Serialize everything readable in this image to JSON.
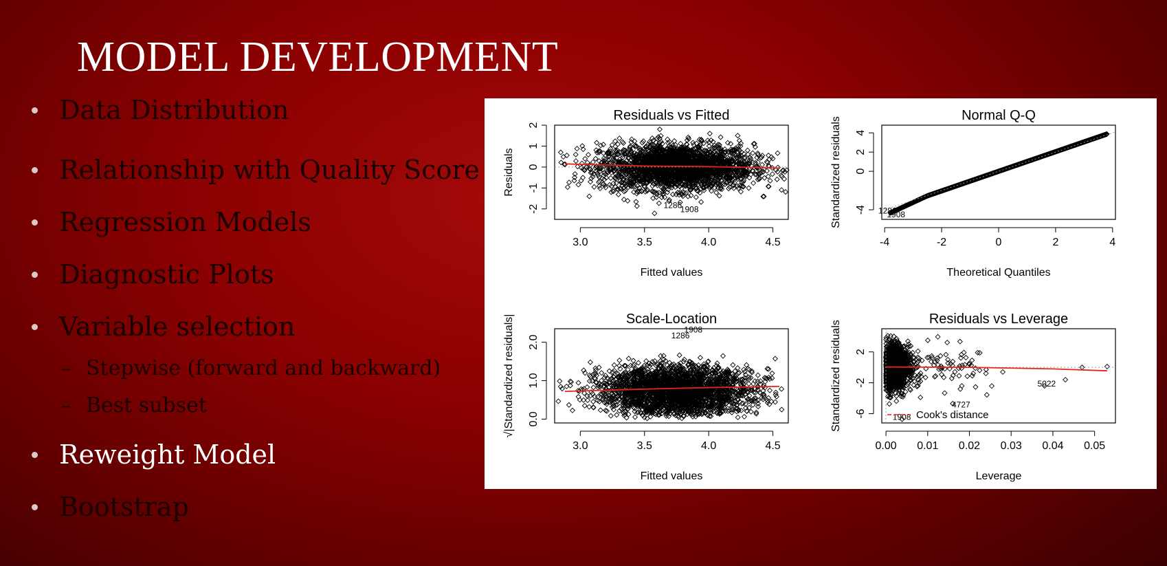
{
  "slide": {
    "title": "MODEL DEVELOPMENT",
    "bullets": [
      {
        "text": "Data Distribution",
        "level": 1,
        "highlight": false
      },
      {
        "text": "Relationship with Quality Score",
        "level": 1,
        "highlight": false
      },
      {
        "text": "Regression Models",
        "level": 1,
        "highlight": false
      },
      {
        "text": "Diagnostic Plots",
        "level": 1,
        "highlight": false
      },
      {
        "text": "Variable selection",
        "level": 1,
        "highlight": false
      },
      {
        "text": "Stepwise (forward and backward)",
        "level": 2,
        "highlight": false
      },
      {
        "text": "Best subset",
        "level": 2,
        "highlight": false
      },
      {
        "text": "Reweight Model",
        "level": 1,
        "highlight": true
      },
      {
        "text": "Bootstrap",
        "level": 1,
        "highlight": false
      }
    ],
    "sub_marker": "–"
  },
  "colors": {
    "accent_line": "#e8221d",
    "points": "#000000",
    "bullet_dot": "#d9c9c9",
    "highlight_text": "#ffffff"
  },
  "chart_data": [
    {
      "type": "scatter",
      "title": "Residuals vs Fitted",
      "xlabel": "Fitted values",
      "ylabel": "Residuals",
      "xlim": [
        2.8,
        4.62
      ],
      "ylim": [
        -2.5,
        2.0
      ],
      "xticks": [
        "3.0",
        "3.5",
        "4.0",
        "4.5"
      ],
      "xtick_values": [
        3.0,
        3.5,
        4.0,
        4.5
      ],
      "yticks": [
        "-2",
        "-1",
        "0",
        "1",
        "2"
      ],
      "ytick_values": [
        -2,
        -1,
        0,
        1,
        2
      ],
      "cloud": {
        "x_center": 3.75,
        "x_spread": 0.3,
        "y_center": 0.0,
        "y_spread": 0.55
      },
      "smoother": {
        "x": [
          2.88,
          3.5,
          4.0,
          4.55
        ],
        "y": [
          0.15,
          0.05,
          0.02,
          -0.05
        ]
      },
      "reference_line": {
        "y": 0
      },
      "labels": [
        {
          "text": "1908",
          "x": 3.85,
          "y": -2.15
        },
        {
          "text": "1286",
          "x": 3.72,
          "y": -1.95
        }
      ]
    },
    {
      "type": "scatter",
      "title": "Normal Q-Q",
      "xlabel": "Theoretical Quantiles",
      "ylabel": "Standardized residuals",
      "xlim": [
        -4.1,
        4.1
      ],
      "ylim": [
        -5.0,
        4.8
      ],
      "xticks": [
        "-4",
        "-2",
        "0",
        "2",
        "4"
      ],
      "xtick_values": [
        -4,
        -2,
        0,
        2,
        4
      ],
      "yticks": [
        "-4",
        "0",
        "2",
        "4"
      ],
      "ytick_values": [
        -4,
        0,
        2,
        4
      ],
      "reference_line": {
        "x": [
          -4.1,
          4.1
        ],
        "y": [
          -4.1,
          4.1
        ]
      },
      "labels": [
        {
          "text": "1908",
          "x": -3.6,
          "y": -4.8
        },
        {
          "text": "1286",
          "x": -3.9,
          "y": -4.4
        }
      ]
    },
    {
      "type": "scatter",
      "title": "Scale-Location",
      "xlabel": "Fitted values",
      "ylabel": "√|Standardized residuals|",
      "xlim": [
        2.8,
        4.62
      ],
      "ylim": [
        -0.1,
        2.35
      ],
      "xticks": [
        "3.0",
        "3.5",
        "4.0",
        "4.5"
      ],
      "xtick_values": [
        3.0,
        3.5,
        4.0,
        4.5
      ],
      "yticks": [
        "0.0",
        "1.0",
        "2.0"
      ],
      "ytick_values": [
        0.0,
        1.0,
        2.0
      ],
      "cloud": {
        "x_center": 3.75,
        "x_spread": 0.3,
        "y_center": 0.75,
        "y_spread": 0.45
      },
      "smoother": {
        "x": [
          2.88,
          3.5,
          4.0,
          4.55
        ],
        "y": [
          0.72,
          0.78,
          0.82,
          0.85
        ]
      },
      "labels": [
        {
          "text": "1908",
          "x": 3.88,
          "y": 2.25
        },
        {
          "text": "1286",
          "x": 3.78,
          "y": 2.1
        }
      ]
    },
    {
      "type": "scatter",
      "title": "Residuals vs Leverage",
      "xlabel": "Leverage",
      "ylabel": "Standardized residuals",
      "xlim": [
        -0.001,
        0.055
      ],
      "ylim": [
        -7.2,
        5.0
      ],
      "xticks": [
        "0.00",
        "0.01",
        "0.02",
        "0.03",
        "0.04",
        "0.05"
      ],
      "xtick_values": [
        0.0,
        0.01,
        0.02,
        0.03,
        0.04,
        0.05
      ],
      "yticks": [
        "-6",
        "-2",
        "2"
      ],
      "ytick_values": [
        -6,
        -2,
        2
      ],
      "smoother": {
        "x": [
          0.0,
          0.02,
          0.04,
          0.053
        ],
        "y": [
          0.05,
          0.0,
          -0.2,
          -0.45
        ]
      },
      "reference_line": {
        "y": 0
      },
      "labels": [
        {
          "text": "1908",
          "x": 0.0038,
          "y": -6.8
        },
        {
          "text": "5022",
          "x": 0.0385,
          "y": -2.5
        },
        {
          "text": "4727",
          "x": 0.018,
          "y": -5.2
        }
      ],
      "legend": {
        "text": "Cook's distance",
        "position": "bottom-left"
      }
    }
  ]
}
